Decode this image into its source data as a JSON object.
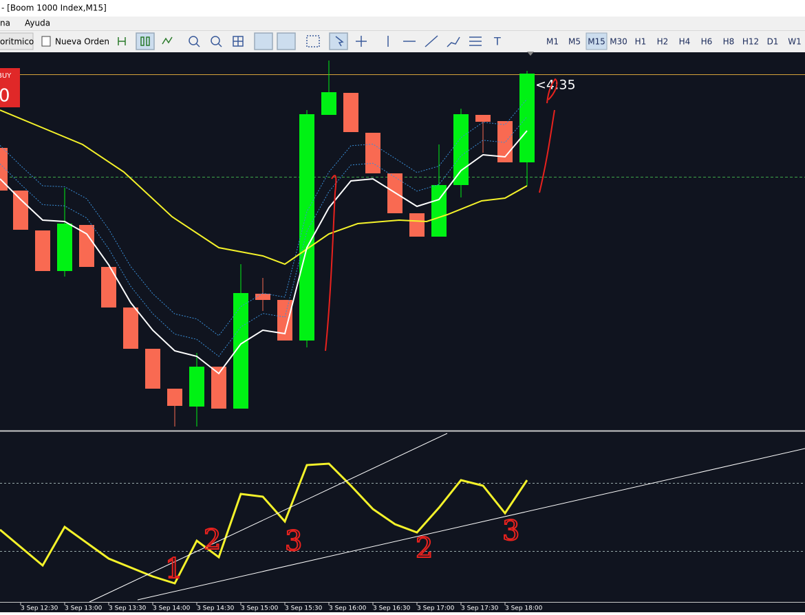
{
  "window": {
    "title": "- [Boom 1000 Index,M15]"
  },
  "menu": [
    "na",
    "Ayuda"
  ],
  "toolbar": {
    "buttons": [
      "oritmico",
      "Nueva Orden"
    ],
    "timeframes": [
      "M1",
      "M5",
      "M15",
      "M30",
      "H1",
      "H2",
      "H4",
      "H6",
      "H8",
      "H12",
      "D1",
      "W1"
    ],
    "active_timeframe": "M15"
  },
  "chart": {
    "buy_panel": {
      "label": "BUY",
      "price": "0"
    },
    "price_label": "<4:35",
    "time_axis": [
      "3 Sep 12:30",
      "3 Sep 13:00",
      "3 Sep 13:30",
      "3 Sep 14:00",
      "3 Sep 14:30",
      "3 Sep 15:00",
      "3 Sep 15:30",
      "3 Sep 16:00",
      "3 Sep 16:30",
      "3 Sep 17:00",
      "3 Sep 17:30",
      "3 Sep 18:00"
    ],
    "annotations": [
      "1",
      "2",
      "3",
      "2",
      "3"
    ]
  }
}
